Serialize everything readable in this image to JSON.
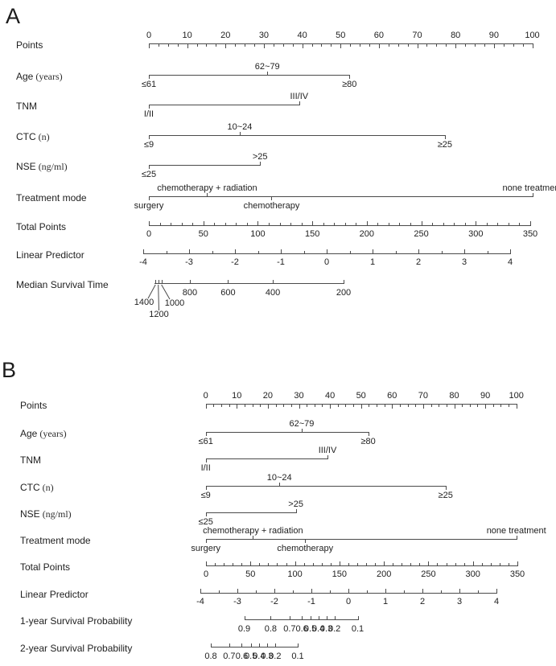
{
  "figure": {
    "kind": "nomogram-figure",
    "background": "#ffffff",
    "line_color": "#4a4a4a",
    "text_color": "#212121"
  },
  "chart_data": {
    "type": "nomogram",
    "panels": [
      {
        "letter": "A",
        "rows": [
          {
            "id": "points",
            "label": "Points",
            "axis": {
              "kind": "points",
              "min": 0,
              "max": 100,
              "ticks": [
                0,
                10,
                20,
                30,
                40,
                50,
                60,
                70,
                80,
                90,
                100
              ],
              "minor": 2.5
            }
          },
          {
            "id": "age",
            "label": "Age",
            "unit": "(years)",
            "levels": [
              {
                "text": "≤61",
                "points": 0,
                "side": "below"
              },
              {
                "text": "62~79",
                "points": 30.9,
                "side": "above"
              },
              {
                "text": "≥80",
                "points": 52.3,
                "side": "below"
              }
            ]
          },
          {
            "id": "tnm",
            "label": "TNM",
            "levels": [
              {
                "text": "I/II",
                "points": 0,
                "side": "below"
              },
              {
                "text": "III/IV",
                "points": 39.2,
                "side": "above"
              }
            ]
          },
          {
            "id": "ctc",
            "label": "CTC",
            "unit": "(n)",
            "levels": [
              {
                "text": "≤9",
                "points": 0,
                "side": "below"
              },
              {
                "text": "10~24",
                "points": 23.7,
                "side": "above"
              },
              {
                "text": "≥25",
                "points": 77.2,
                "side": "below"
              }
            ]
          },
          {
            "id": "nse",
            "label": "NSE",
            "unit": "(ng/ml)",
            "levels": [
              {
                "text": "≤25",
                "points": 0,
                "side": "below"
              },
              {
                "text": ">25",
                "points": 29,
                "side": "above"
              }
            ]
          },
          {
            "id": "treatment",
            "label": "Treatment mode",
            "levels": [
              {
                "text": "surgery",
                "points": 0,
                "side": "below"
              },
              {
                "text": "chemotherapy + radiation",
                "points": 15.2,
                "side": "above"
              },
              {
                "text": "chemotherapy",
                "points": 32,
                "side": "below"
              },
              {
                "text": "none treatment",
                "points": 100,
                "side": "above"
              }
            ]
          },
          {
            "id": "total_points",
            "label": "Total Points",
            "axis": {
              "kind": "scale",
              "min": 0,
              "max": 350,
              "ticks": [
                0,
                50,
                100,
                150,
                200,
                250,
                300,
                350
              ],
              "minor": 10
            }
          },
          {
            "id": "linear_predictor",
            "label": "Linear Predictor",
            "axis": {
              "kind": "scale",
              "min": -4,
              "max": 4,
              "ticks": [
                -4,
                -3,
                -2,
                -1,
                0,
                1,
                2,
                3,
                4
              ],
              "minor": 0.5
            }
          },
          {
            "id": "mst",
            "label": "Median Survival Time",
            "fracticks": [
              {
                "value": 1400,
                "frac": 0.005,
                "leader": true
              },
              {
                "value": 1200,
                "frac": 0.02,
                "leader": true
              },
              {
                "value": 1000,
                "frac": 0.037,
                "leader": true
              },
              {
                "value": 800,
                "frac": 0.187
              },
              {
                "value": 600,
                "frac": 0.389
              },
              {
                "value": 400,
                "frac": 0.626
              },
              {
                "value": 200,
                "frac": 1.0
              }
            ]
          }
        ]
      },
      {
        "letter": "B",
        "rows": [
          {
            "id": "points",
            "label": "Points",
            "axis": {
              "kind": "points",
              "min": 0,
              "max": 100,
              "ticks": [
                0,
                10,
                20,
                30,
                40,
                50,
                60,
                70,
                80,
                90,
                100
              ],
              "minor": 2.5
            }
          },
          {
            "id": "age",
            "label": "Age",
            "unit": "(years)",
            "levels": [
              {
                "text": "≤61",
                "points": 0,
                "side": "below"
              },
              {
                "text": "62~79",
                "points": 30.9,
                "side": "above"
              },
              {
                "text": "≥80",
                "points": 52.3,
                "side": "below"
              }
            ]
          },
          {
            "id": "tnm",
            "label": "TNM",
            "levels": [
              {
                "text": "I/II",
                "points": 0,
                "side": "below"
              },
              {
                "text": "III/IV",
                "points": 39.2,
                "side": "above"
              }
            ]
          },
          {
            "id": "ctc",
            "label": "CTC",
            "unit": "(n)",
            "levels": [
              {
                "text": "≤9",
                "points": 0,
                "side": "below"
              },
              {
                "text": "10~24",
                "points": 23.7,
                "side": "above"
              },
              {
                "text": "≥25",
                "points": 77.2,
                "side": "below"
              }
            ]
          },
          {
            "id": "nse",
            "label": "NSE",
            "unit": "(ng/ml)",
            "levels": [
              {
                "text": "≤25",
                "points": 0,
                "side": "below"
              },
              {
                "text": ">25",
                "points": 29,
                "side": "above"
              }
            ]
          },
          {
            "id": "treatment",
            "label": "Treatment mode",
            "levels": [
              {
                "text": "surgery",
                "points": 0,
                "side": "below"
              },
              {
                "text": "chemotherapy + radiation",
                "points": 15.2,
                "side": "above"
              },
              {
                "text": "chemotherapy",
                "points": 32,
                "side": "below"
              },
              {
                "text": "none treatment",
                "points": 100,
                "side": "above"
              }
            ]
          },
          {
            "id": "total_points",
            "label": "Total Points",
            "axis": {
              "kind": "scale",
              "min": 0,
              "max": 350,
              "ticks": [
                0,
                50,
                100,
                150,
                200,
                250,
                300,
                350
              ],
              "minor": 10
            }
          },
          {
            "id": "linear_predictor",
            "label": "Linear Predictor",
            "axis": {
              "kind": "scale",
              "min": -4,
              "max": 4,
              "ticks": [
                -4,
                -3,
                -2,
                -1,
                0,
                1,
                2,
                3,
                4
              ],
              "minor": 0.5
            }
          },
          {
            "id": "surv1",
            "label": "1-year Survival Probability",
            "fracticks": [
              {
                "value": 0.9,
                "frac": 0
              },
              {
                "value": 0.8,
                "frac": 0.233
              },
              {
                "value": 0.7,
                "frac": 0.4
              },
              {
                "value": 0.6,
                "frac": 0.508
              },
              {
                "value": 0.5,
                "frac": 0.582
              },
              {
                "value": 0.4,
                "frac": 0.653
              },
              {
                "value": 0.3,
                "frac": 0.724
              },
              {
                "value": 0.2,
                "frac": 0.795
              },
              {
                "value": 0.1,
                "frac": 1.0
              }
            ]
          },
          {
            "id": "surv2",
            "label": "2-year Survival Probability",
            "fracticks": [
              {
                "value": 0.8,
                "frac": 0
              },
              {
                "value": 0.7,
                "frac": 0.212
              },
              {
                "value": 0.6,
                "frac": 0.356
              },
              {
                "value": 0.5,
                "frac": 0.46
              },
              {
                "value": 0.4,
                "frac": 0.554
              },
              {
                "value": 0.3,
                "frac": 0.647
              },
              {
                "value": 0.2,
                "frac": 0.739
              },
              {
                "value": 0.1,
                "frac": 1.0
              }
            ]
          }
        ]
      }
    ]
  }
}
